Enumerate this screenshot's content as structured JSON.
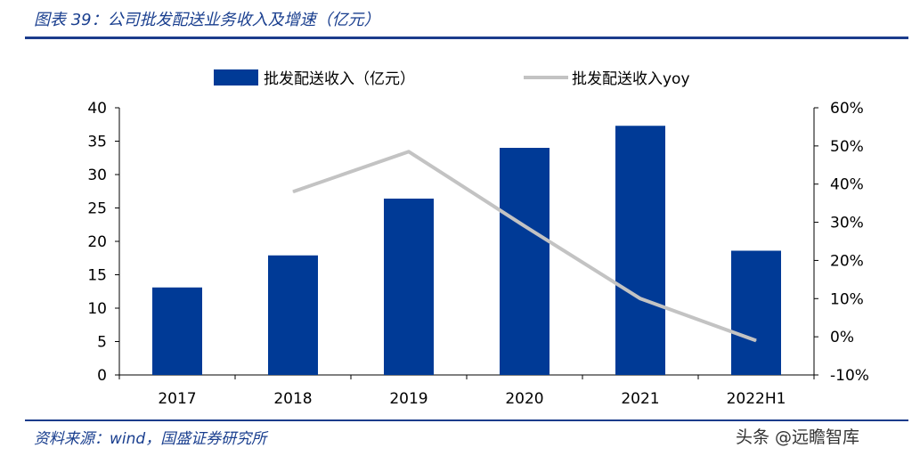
{
  "figure": {
    "title": "图表 39：公司批发配送业务收入及增速（亿元）",
    "source": "资料来源：wind，国盛证券研究所",
    "watermark": "头条 @远瞻智库"
  },
  "colors": {
    "bar": "#003a96",
    "line": "#c3c3c3",
    "rule": "#1b3c8c",
    "title_text": "#1a3f8f"
  },
  "chart_data": {
    "type": "bar",
    "categories": [
      "2017",
      "2018",
      "2019",
      "2020",
      "2021",
      "2022H1"
    ],
    "series": [
      {
        "name": "批发配送收入（亿元）",
        "type": "bar",
        "axis": "left",
        "values": [
          13.1,
          17.9,
          26.4,
          34.0,
          37.3,
          18.6
        ]
      },
      {
        "name": "批发配送收入yoy",
        "type": "line",
        "axis": "right",
        "values": [
          null,
          0.38,
          0.485,
          0.29,
          0.1,
          -0.01
        ]
      }
    ],
    "y_left": {
      "lim": [
        0,
        40
      ],
      "ticks": [
        0,
        5,
        10,
        15,
        20,
        25,
        30,
        35,
        40
      ],
      "tick_labels": [
        "0",
        "5",
        "10",
        "15",
        "20",
        "25",
        "30",
        "35",
        "40"
      ]
    },
    "y_right": {
      "lim": [
        -0.1,
        0.6
      ],
      "ticks": [
        -0.1,
        0.0,
        0.1,
        0.2,
        0.3,
        0.4,
        0.5,
        0.6
      ],
      "tick_labels": [
        "-10%",
        "0%",
        "10%",
        "20%",
        "30%",
        "40%",
        "50%",
        "60%"
      ]
    },
    "legend": "top",
    "grid": false
  }
}
